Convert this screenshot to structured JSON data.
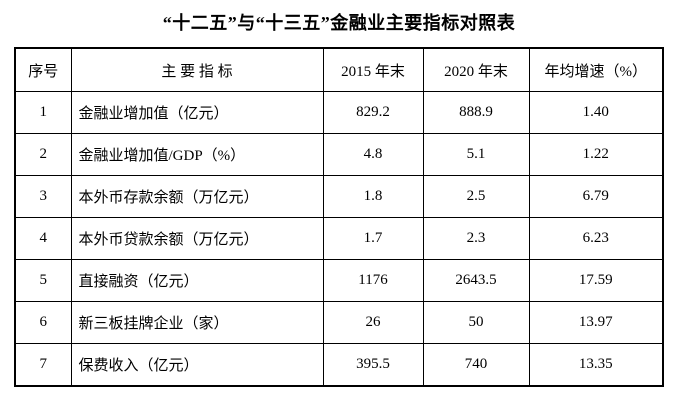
{
  "title": "“十二五”与“十三五”金融业主要指标对照表",
  "table": {
    "columns": [
      "序号",
      "主 要 指 标",
      "2015 年末",
      "2020 年末",
      "年均增速（%）"
    ],
    "rows": [
      {
        "no": "1",
        "indicator": "金融业增加值（亿元）",
        "v2015": "829.2",
        "v2020": "888.9",
        "growth": "1.40"
      },
      {
        "no": "2",
        "indicator": "金融业增加值/GDP（%）",
        "v2015": "4.8",
        "v2020": "5.1",
        "growth": "1.22"
      },
      {
        "no": "3",
        "indicator": "本外币存款余额（万亿元）",
        "v2015": "1.8",
        "v2020": "2.5",
        "growth": "6.79"
      },
      {
        "no": "4",
        "indicator": "本外币贷款余额（万亿元）",
        "v2015": "1.7",
        "v2020": "2.3",
        "growth": "6.23"
      },
      {
        "no": "5",
        "indicator": "直接融资（亿元）",
        "v2015": "1176",
        "v2020": "2643.5",
        "growth": "17.59"
      },
      {
        "no": "6",
        "indicator": "新三板挂牌企业（家）",
        "v2015": "26",
        "v2020": "50",
        "growth": "13.97"
      },
      {
        "no": "7",
        "indicator": "保费收入（亿元）",
        "v2015": "395.5",
        "v2020": "740",
        "growth": "13.35"
      }
    ]
  },
  "chart_data": {
    "type": "table",
    "title": "“十二五”与“十三五”金融业主要指标对照表",
    "columns": [
      "序号",
      "主要指标",
      "2015年末",
      "2020年末",
      "年均增速（%）"
    ],
    "rows": [
      [
        "1",
        "金融业增加值（亿元）",
        829.2,
        888.9,
        1.4
      ],
      [
        "2",
        "金融业增加值/GDP（%）",
        4.8,
        5.1,
        1.22
      ],
      [
        "3",
        "本外币存款余额（万亿元）",
        1.8,
        2.5,
        6.79
      ],
      [
        "4",
        "本外币贷款余额（万亿元）",
        1.7,
        2.3,
        6.23
      ],
      [
        "5",
        "直接融资（亿元）",
        1176,
        2643.5,
        17.59
      ],
      [
        "6",
        "新三板挂牌企业（家）",
        26,
        50,
        13.97
      ],
      [
        "7",
        "保费收入（亿元）",
        395.5,
        740,
        13.35
      ]
    ],
    "colors": {
      "border": "#000000",
      "text": "#000000",
      "background": "#ffffff"
    }
  }
}
